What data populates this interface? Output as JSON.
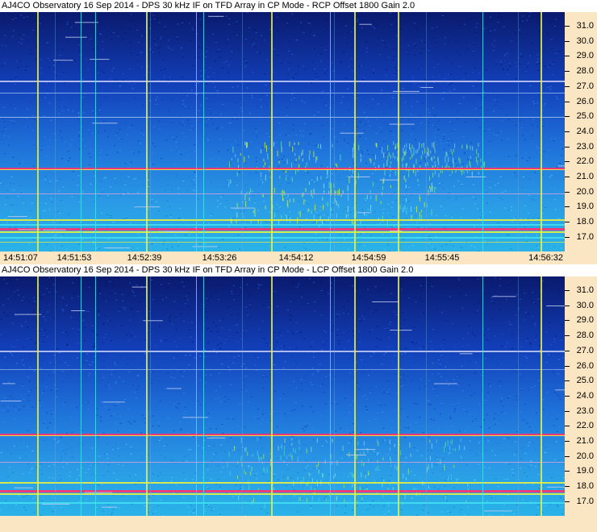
{
  "panels": [
    {
      "title": "AJ4CO Observatory 16 Sep 2014 - DPS 30 kHz IF on TFD Array in CP Mode - RCP     Offset 1800  Gain 2.0",
      "frequency_labels": [
        "31.0",
        "30.0",
        "29.0",
        "28.0",
        "27.0",
        "26.0",
        "25.0",
        "24.0",
        "23.0",
        "22.0",
        "21.0",
        "20.0",
        "19.0",
        "18.0",
        "17.0"
      ]
    },
    {
      "title": "AJ4CO Observatory 16 Sep 2014 - DPS 30 kHz IF on TFD Array in CP Mode - LCP     Offset 1800  Gain 2.0",
      "frequency_labels": [
        "31.0",
        "30.0",
        "29.0",
        "28.0",
        "27.0",
        "26.0",
        "25.0",
        "24.0",
        "23.0",
        "22.0",
        "21.0",
        "20.0",
        "19.0",
        "18.0",
        "17.0"
      ]
    }
  ],
  "time_labels": [
    "14:51:07",
    "14:51:53",
    "14:52:39",
    "14:53:26",
    "14:54:12",
    "14:54:59",
    "14:55:45",
    "14:56:32"
  ],
  "colors": {
    "background_deep": "#0b1f8a",
    "background_mid": "#1a5ad6",
    "background_light": "#2aa6e8",
    "interference_yellow": "#e8f040",
    "interference_red": "#ff3070",
    "interference_cyan": "#40e0f0",
    "axis_background": "#fbe6c4"
  }
}
